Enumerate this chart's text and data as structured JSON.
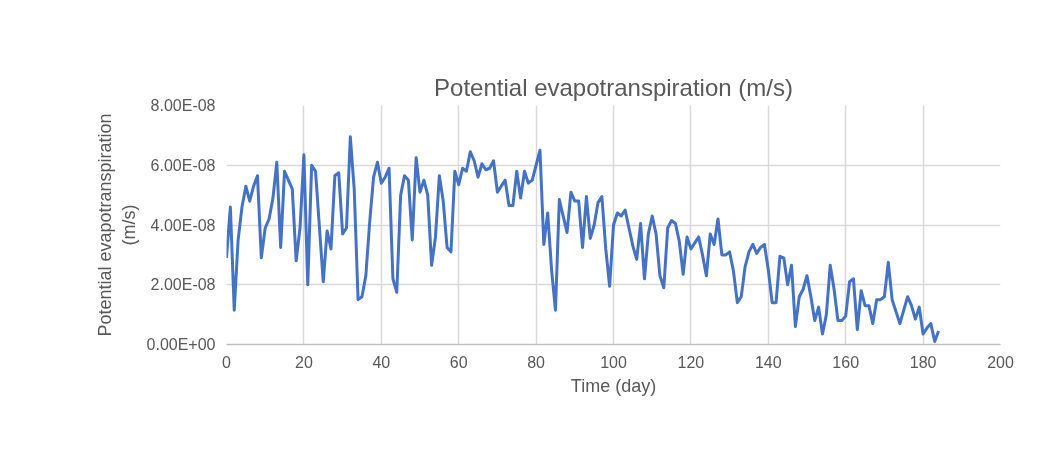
{
  "chart_data": {
    "type": "line",
    "title": "Potential evapotranspiration (m/s)",
    "xlabel": "Time (day)",
    "ylabel": "Potential evapotranspiration (m/s)",
    "x": [
      0,
      1,
      2,
      3,
      4,
      5,
      6,
      7,
      8,
      9,
      10,
      11,
      12,
      13,
      14,
      15,
      16,
      17,
      18,
      19,
      20,
      21,
      22,
      23,
      24,
      25,
      26,
      27,
      28,
      29,
      30,
      31,
      32,
      33,
      34,
      35,
      36,
      37,
      38,
      39,
      40,
      41,
      42,
      43,
      44,
      45,
      46,
      47,
      48,
      49,
      50,
      51,
      52,
      53,
      54,
      55,
      56,
      57,
      58,
      59,
      60,
      61,
      62,
      63,
      64,
      65,
      66,
      67,
      68,
      69,
      70,
      71,
      72,
      73,
      74,
      75,
      76,
      77,
      78,
      79,
      80,
      81,
      82,
      83,
      84,
      85,
      86,
      87,
      88,
      89,
      90,
      91,
      92,
      93,
      94,
      95,
      96,
      97,
      98,
      99,
      100,
      101,
      102,
      103,
      104,
      105,
      106,
      107,
      108,
      109,
      110,
      111,
      112,
      113,
      114,
      115,
      116,
      117,
      118,
      119,
      120,
      121,
      122,
      123,
      124,
      125,
      126,
      127,
      128,
      129,
      130,
      131,
      132,
      133,
      134,
      135,
      136,
      137,
      138,
      139,
      140,
      141,
      142,
      143,
      144,
      145,
      146,
      147,
      148,
      149,
      150,
      151,
      152,
      153,
      154,
      155,
      156,
      157,
      158,
      159,
      160,
      161,
      162,
      163,
      164,
      165,
      166,
      167,
      168,
      169,
      170,
      171,
      172,
      173,
      174,
      175,
      176,
      177,
      178,
      179,
      180,
      181,
      182,
      183,
      184
    ],
    "series": [
      {
        "color": "#4472c4",
        "values": [
          2.9e-08,
          4.6e-08,
          1.15e-08,
          3.5e-08,
          4.6e-08,
          5.3e-08,
          4.8e-08,
          5.3e-08,
          5.65e-08,
          2.9e-08,
          3.9e-08,
          4.2e-08,
          4.9e-08,
          6.1e-08,
          3.25e-08,
          5.8e-08,
          5.5e-08,
          5.2e-08,
          2.8e-08,
          3.9e-08,
          6.35e-08,
          2e-08,
          6e-08,
          5.8e-08,
          3.95e-08,
          2.1e-08,
          3.8e-08,
          3.2e-08,
          5.65e-08,
          5.75e-08,
          3.7e-08,
          3.9e-08,
          6.95e-08,
          5.2e-08,
          1.5e-08,
          1.6e-08,
          2.3e-08,
          4.1e-08,
          5.6e-08,
          6.1e-08,
          5.4e-08,
          5.6e-08,
          5.9e-08,
          2.2e-08,
          1.75e-08,
          5e-08,
          5.65e-08,
          5.5e-08,
          3.5e-08,
          6.25e-08,
          5.1e-08,
          5.5e-08,
          5e-08,
          2.65e-08,
          3.6e-08,
          5.65e-08,
          4.8e-08,
          3.25e-08,
          3.1e-08,
          5.8e-08,
          5.35e-08,
          5.9e-08,
          5.8e-08,
          6.45e-08,
          6.15e-08,
          5.6e-08,
          6.05e-08,
          5.85e-08,
          5.9e-08,
          6.15e-08,
          5.1e-08,
          5.3e-08,
          5.5e-08,
          4.65e-08,
          4.65e-08,
          5.8e-08,
          4.9e-08,
          5.8e-08,
          5.4e-08,
          5.5e-08,
          6e-08,
          6.5e-08,
          3.35e-08,
          4.4e-08,
          2.5e-08,
          1.15e-08,
          4.85e-08,
          4.3e-08,
          3.75e-08,
          5.1e-08,
          4.8e-08,
          4.8e-08,
          3.25e-08,
          4.95e-08,
          3.55e-08,
          4e-08,
          4.75e-08,
          4.95e-08,
          3.2e-08,
          1.95e-08,
          4e-08,
          4.4e-08,
          4.3e-08,
          4.5e-08,
          3.9e-08,
          3.3e-08,
          2.85e-08,
          4.05e-08,
          2.2e-08,
          3.7e-08,
          4.3e-08,
          3.7e-08,
          2.3e-08,
          1.9e-08,
          3.9e-08,
          4.15e-08,
          4.05e-08,
          3.45e-08,
          2.35e-08,
          3.6e-08,
          3.2e-08,
          3.4e-08,
          3.6e-08,
          3e-08,
          2.3e-08,
          3.7e-08,
          3.35e-08,
          4.2e-08,
          3e-08,
          3e-08,
          3.1e-08,
          2.45e-08,
          1.4e-08,
          1.6e-08,
          2.6e-08,
          3.1e-08,
          3.35e-08,
          3.05e-08,
          3.25e-08,
          3.35e-08,
          2.5e-08,
          1.4e-08,
          1.4e-08,
          2.95e-08,
          2.9e-08,
          2e-08,
          2.65e-08,
          6e-09,
          1.6e-08,
          1.85e-08,
          2.3e-08,
          1.6e-08,
          8e-09,
          1.25e-08,
          3.5e-09,
          1e-08,
          2.65e-08,
          1.85e-08,
          8e-09,
          8e-09,
          9.5e-09,
          2.1e-08,
          2.2e-08,
          5e-09,
          1.8e-08,
          1.3e-08,
          1.3e-08,
          7e-09,
          1.5e-08,
          1.5e-08,
          1.6e-08,
          2.75e-08,
          1.5e-08,
          1.1e-08,
          7e-09,
          1.15e-08,
          1.6e-08,
          1.3e-08,
          8.5e-09,
          1.25e-08,
          3.5e-09,
          5.5e-09,
          7e-09,
          1e-09,
          4.5e-09
        ]
      }
    ],
    "xlim": [
      0,
      200
    ],
    "xticks": [
      0,
      20,
      40,
      60,
      80,
      100,
      120,
      140,
      160,
      180,
      200
    ],
    "ylim": [
      0,
      8e-08
    ],
    "yticks": [
      {
        "value": 0,
        "label": "0.00E+00"
      },
      {
        "value": 2e-08,
        "label": "2.00E-08"
      },
      {
        "value": 4e-08,
        "label": "4.00E-08"
      },
      {
        "value": 6e-08,
        "label": "6.00E-08"
      },
      {
        "value": 8e-08,
        "label": "8.00E-08"
      }
    ],
    "grid": true,
    "line_style": "solid"
  }
}
